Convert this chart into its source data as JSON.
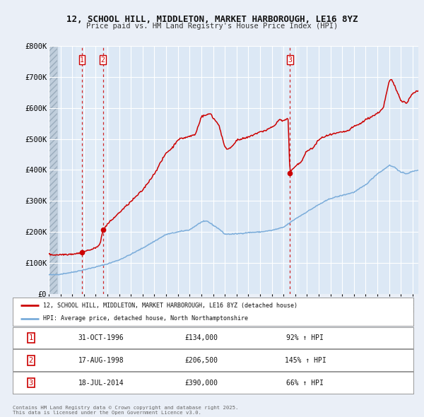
{
  "title_line1": "12, SCHOOL HILL, MIDDLETON, MARKET HARBOROUGH, LE16 8YZ",
  "title_line2": "Price paid vs. HM Land Registry's House Price Index (HPI)",
  "legend_red": "12, SCHOOL HILL, MIDDLETON, MARKET HARBOROUGH, LE16 8YZ (detached house)",
  "legend_blue": "HPI: Average price, detached house, North Northamptonshire",
  "footnote": "Contains HM Land Registry data © Crown copyright and database right 2025.\nThis data is licensed under the Open Government Licence v3.0.",
  "transactions": [
    {
      "label": "1",
      "date": "31-OCT-1996",
      "price": 134000,
      "hpi_pct": "92% ↑ HPI",
      "year": 1996.83
    },
    {
      "label": "2",
      "date": "17-AUG-1998",
      "price": 206500,
      "hpi_pct": "145% ↑ HPI",
      "year": 1998.62
    },
    {
      "label": "3",
      "date": "18-JUL-2014",
      "price": 390000,
      "hpi_pct": "66% ↑ HPI",
      "year": 2014.54
    }
  ],
  "ylim": [
    0,
    800000
  ],
  "yticks": [
    0,
    100000,
    200000,
    300000,
    400000,
    500000,
    600000,
    700000,
    800000
  ],
  "ytick_labels": [
    "£0",
    "£100K",
    "£200K",
    "£300K",
    "£400K",
    "£500K",
    "£600K",
    "£700K",
    "£800K"
  ],
  "xlim_start": 1994.0,
  "xlim_end": 2025.5,
  "bg_color": "#eaeff7",
  "plot_bg_color": "#dce8f5",
  "red_color": "#cc0000",
  "blue_color": "#7aacda",
  "grid_color": "#ffffff",
  "hatch_color": "#c0cedc"
}
